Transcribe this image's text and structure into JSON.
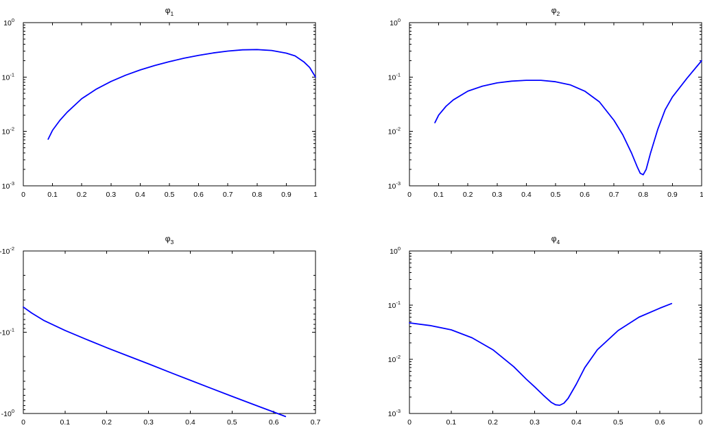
{
  "chart_data": [
    {
      "type": "line",
      "title": "φ1",
      "title_base": "φ",
      "title_sub": "1",
      "xscale": "linear",
      "yscale": "log",
      "xlim": [
        0,
        1
      ],
      "ylim": [
        0.001,
        1
      ],
      "xticks": [
        "0",
        "0.1",
        "0.2",
        "0.3",
        "0.4",
        "0.5",
        "0.6",
        "0.7",
        "0.8",
        "0.9",
        "1"
      ],
      "yticks": [
        {
          "base": "10",
          "exp": "0"
        },
        {
          "base": "10",
          "exp": "-1"
        },
        {
          "base": "10",
          "exp": "-2"
        },
        {
          "base": "10",
          "exp": "-3"
        }
      ],
      "color": "#0000ff",
      "x": [
        0.085,
        0.1,
        0.125,
        0.15,
        0.2,
        0.25,
        0.3,
        0.35,
        0.4,
        0.45,
        0.5,
        0.55,
        0.6,
        0.65,
        0.7,
        0.75,
        0.8,
        0.85,
        0.9,
        0.93,
        0.96,
        0.98,
        1.0
      ],
      "y": [
        0.0072,
        0.0105,
        0.016,
        0.0225,
        0.04,
        0.06,
        0.083,
        0.108,
        0.135,
        0.163,
        0.192,
        0.222,
        0.25,
        0.277,
        0.3,
        0.316,
        0.32,
        0.308,
        0.275,
        0.245,
        0.19,
        0.15,
        0.1
      ]
    },
    {
      "type": "line",
      "title": "φ2",
      "title_base": "φ",
      "title_sub": "2",
      "xscale": "linear",
      "yscale": "log",
      "xlim": [
        0,
        1
      ],
      "ylim": [
        0.001,
        1
      ],
      "xticks": [
        "0",
        "0.1",
        "0.2",
        "0.3",
        "0.4",
        "0.5",
        "0.6",
        "0.7",
        "0.8",
        "0.9",
        "1"
      ],
      "yticks": [
        {
          "base": "10",
          "exp": "0"
        },
        {
          "base": "10",
          "exp": "-1"
        },
        {
          "base": "10",
          "exp": "-2"
        },
        {
          "base": "10",
          "exp": "-3"
        }
      ],
      "color": "#0000ff",
      "x": [
        0.087,
        0.1,
        0.125,
        0.15,
        0.2,
        0.25,
        0.3,
        0.35,
        0.4,
        0.45,
        0.5,
        0.55,
        0.6,
        0.65,
        0.7,
        0.73,
        0.76,
        0.78,
        0.79,
        0.8,
        0.81,
        0.825,
        0.85,
        0.875,
        0.9,
        0.95,
        1.0
      ],
      "y": [
        0.0145,
        0.02,
        0.029,
        0.038,
        0.055,
        0.068,
        0.078,
        0.084,
        0.087,
        0.087,
        0.082,
        0.072,
        0.055,
        0.035,
        0.016,
        0.0087,
        0.004,
        0.0022,
        0.0017,
        0.0016,
        0.002,
        0.004,
        0.011,
        0.025,
        0.043,
        0.095,
        0.2
      ]
    },
    {
      "type": "line",
      "title": "φ3",
      "title_base": "φ",
      "title_sub": "3",
      "xscale": "linear",
      "yscale": "log",
      "y_negative": true,
      "xlim": [
        0,
        0.7
      ],
      "ylim": [
        -1,
        -0.01
      ],
      "xticks": [
        "0",
        "0.1",
        "0.2",
        "0.3",
        "0.4",
        "0.5",
        "0.6",
        "0.7"
      ],
      "yticks": [
        {
          "base": "-10",
          "exp": "-2"
        },
        {
          "base": "-10",
          "exp": "-1"
        },
        {
          "base": "-10",
          "exp": "0"
        }
      ],
      "color": "#0000ff",
      "x": [
        0.0,
        0.02,
        0.05,
        0.1,
        0.15,
        0.2,
        0.25,
        0.3,
        0.35,
        0.4,
        0.45,
        0.5,
        0.55,
        0.6,
        0.628
      ],
      "y": [
        -0.049,
        -0.058,
        -0.072,
        -0.095,
        -0.122,
        -0.155,
        -0.195,
        -0.245,
        -0.31,
        -0.39,
        -0.49,
        -0.615,
        -0.77,
        -0.96,
        -1.09
      ]
    },
    {
      "type": "line",
      "title": "φ4",
      "title_base": "φ",
      "title_sub": "4",
      "xscale": "linear",
      "yscale": "log",
      "xlim": [
        0,
        0.7
      ],
      "ylim": [
        0.001,
        1
      ],
      "xticks": [
        "0",
        "0.1",
        "0.2",
        "0.3",
        "0.4",
        "0.5",
        "0.6",
        "0."
      ],
      "yticks": [
        {
          "base": "10",
          "exp": "0"
        },
        {
          "base": "10",
          "exp": "-1"
        },
        {
          "base": "10",
          "exp": "-2"
        },
        {
          "base": "10",
          "exp": "-3"
        }
      ],
      "color": "#0000ff",
      "x": [
        0.0,
        0.05,
        0.1,
        0.15,
        0.2,
        0.25,
        0.28,
        0.3,
        0.32,
        0.34,
        0.35,
        0.36,
        0.37,
        0.38,
        0.4,
        0.42,
        0.45,
        0.5,
        0.55,
        0.6,
        0.628
      ],
      "y": [
        0.047,
        0.042,
        0.035,
        0.025,
        0.015,
        0.0073,
        0.0043,
        0.0031,
        0.0022,
        0.0016,
        0.00145,
        0.00142,
        0.00155,
        0.0019,
        0.0035,
        0.007,
        0.015,
        0.034,
        0.06,
        0.088,
        0.107
      ]
    }
  ]
}
